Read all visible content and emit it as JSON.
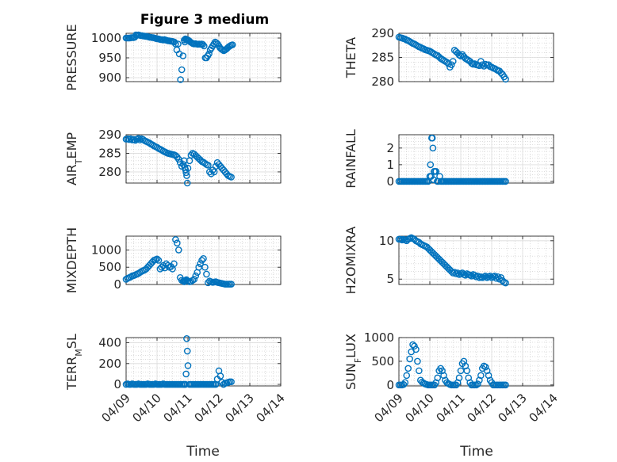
{
  "figure": {
    "title": "Figure 3 medium",
    "xlabel": "Time",
    "marker_color": "#0072bd",
    "xticks": [
      "04/09",
      "04/10",
      "04/11",
      "04/12",
      "04/13",
      "04/14"
    ]
  },
  "chart_data": [
    {
      "type": "scatter",
      "ylabel": "PRESSURE",
      "ylim": [
        890,
        1012
      ],
      "yticks": [
        900,
        950,
        1000
      ],
      "grid": "on",
      "x": [
        0.0,
        0.04,
        0.08,
        0.12,
        0.16,
        0.2,
        0.24,
        0.28,
        0.32,
        0.36,
        0.4,
        0.44,
        0.48,
        0.52,
        0.56,
        0.6,
        0.64,
        0.68,
        0.72,
        0.76,
        0.8,
        0.84,
        0.88,
        0.92,
        0.96,
        1.0,
        1.04,
        1.08,
        1.12,
        1.16,
        1.2,
        1.24,
        1.28,
        1.32,
        1.36,
        1.4,
        1.44,
        1.48,
        1.52,
        1.56,
        1.6,
        1.64,
        1.68,
        1.72,
        1.76,
        1.8,
        1.84,
        1.88,
        1.9,
        1.92,
        1.94,
        1.96,
        1.98,
        2.0,
        2.02,
        2.04,
        2.08,
        2.12,
        2.16,
        2.2,
        2.24,
        2.28,
        2.32,
        2.36,
        2.4,
        2.44,
        2.48,
        2.52,
        2.56,
        2.6,
        2.64,
        2.68,
        2.72,
        2.76,
        2.8,
        2.84,
        2.88,
        2.92,
        2.96,
        3.0,
        3.04,
        3.08,
        3.12,
        3.16,
        3.2,
        3.24,
        3.28,
        3.32,
        3.36,
        3.4,
        3.44
      ],
      "values": [
        1000,
        1000,
        1000,
        1000,
        1001,
        1001,
        1001,
        1002,
        1008,
        1007,
        1008,
        1007,
        1006,
        1006,
        1005,
        1005,
        1004,
        1004,
        1003,
        1002,
        1002,
        1001,
        1001,
        1000,
        999,
        998,
        998,
        997,
        996,
        996,
        995,
        996,
        995,
        994,
        993,
        993,
        992,
        992,
        991,
        990,
        985,
        970,
        985,
        960,
        895,
        920,
        955,
        995,
        990,
        998,
        996,
        995,
        996,
        995,
        994,
        993,
        990,
        988,
        986,
        985,
        986,
        985,
        984,
        985,
        984,
        985,
        984,
        980,
        950,
        950,
        955,
        960,
        970,
        975,
        980,
        985,
        990,
        988,
        985,
        980,
        975,
        972,
        970,
        968,
        970,
        972,
        975,
        978,
        980,
        982,
        983
      ]
    },
    {
      "type": "scatter",
      "ylabel": "THETA",
      "ylim": [
        280,
        290
      ],
      "yticks": [
        280,
        285,
        290
      ],
      "grid": "on",
      "x": [
        0.0,
        0.05,
        0.1,
        0.15,
        0.2,
        0.25,
        0.3,
        0.35,
        0.4,
        0.45,
        0.5,
        0.55,
        0.6,
        0.65,
        0.7,
        0.75,
        0.8,
        0.85,
        0.9,
        0.95,
        1.0,
        1.05,
        1.1,
        1.15,
        1.2,
        1.25,
        1.3,
        1.35,
        1.4,
        1.45,
        1.5,
        1.55,
        1.6,
        1.65,
        1.7,
        1.75,
        1.8,
        1.85,
        1.9,
        1.95,
        2.0,
        2.05,
        2.1,
        2.15,
        2.2,
        2.25,
        2.3,
        2.35,
        2.4,
        2.45,
        2.5,
        2.55,
        2.6,
        2.65,
        2.7,
        2.75,
        2.8,
        2.85,
        2.9,
        2.95,
        3.0,
        3.05,
        3.1,
        3.15,
        3.2,
        3.25,
        3.3,
        3.35,
        3.4,
        3.45
      ],
      "values": [
        289.2,
        289.1,
        289.0,
        288.9,
        288.8,
        288.6,
        288.5,
        288.3,
        288.1,
        287.9,
        287.8,
        287.6,
        287.4,
        287.2,
        287.1,
        286.9,
        286.8,
        286.6,
        286.5,
        286.4,
        286.3,
        286.1,
        285.9,
        285.7,
        285.5,
        285.4,
        285.1,
        284.8,
        284.6,
        284.4,
        284.2,
        284.0,
        283.7,
        283.0,
        283.5,
        284.2,
        286.5,
        286.2,
        285.9,
        285.5,
        285.3,
        285.6,
        285.2,
        284.8,
        284.6,
        284.4,
        284.2,
        283.8,
        283.6,
        283.7,
        283.5,
        283.4,
        283.3,
        284.2,
        283.5,
        283.2,
        283.6,
        283.4,
        283.5,
        283.1,
        283.0,
        282.8,
        282.7,
        282.5,
        282.3,
        282.2,
        281.8,
        281.5,
        281.0,
        280.5
      ]
    },
    {
      "type": "scatter",
      "ylabel": "AIR_TEMP",
      "ylim": [
        277,
        290
      ],
      "yticks": [
        280,
        285,
        290
      ],
      "grid": "on",
      "x": [
        0.0,
        0.05,
        0.1,
        0.15,
        0.2,
        0.25,
        0.3,
        0.35,
        0.4,
        0.45,
        0.5,
        0.55,
        0.6,
        0.65,
        0.7,
        0.75,
        0.8,
        0.85,
        0.9,
        0.95,
        1.0,
        1.05,
        1.1,
        1.15,
        1.2,
        1.25,
        1.3,
        1.35,
        1.4,
        1.45,
        1.5,
        1.55,
        1.6,
        1.65,
        1.7,
        1.75,
        1.8,
        1.85,
        1.88,
        1.9,
        1.92,
        1.94,
        1.96,
        1.98,
        2.0,
        2.05,
        2.1,
        2.15,
        2.2,
        2.25,
        2.3,
        2.35,
        2.4,
        2.45,
        2.5,
        2.55,
        2.6,
        2.65,
        2.7,
        2.75,
        2.8,
        2.85,
        2.9,
        2.95,
        3.0,
        3.05,
        3.1,
        3.15,
        3.2,
        3.25,
        3.3,
        3.35,
        3.4
      ],
      "values": [
        288.8,
        288.9,
        288.7,
        288.9,
        288.6,
        288.7,
        288.5,
        288.8,
        289.0,
        288.6,
        288.9,
        288.7,
        288.4,
        288.2,
        288.0,
        287.8,
        287.5,
        287.3,
        287.0,
        286.8,
        286.6,
        286.3,
        286.1,
        285.9,
        285.6,
        285.4,
        285.2,
        285.0,
        284.9,
        284.8,
        284.7,
        284.6,
        284.4,
        284.0,
        283.4,
        282.5,
        281.5,
        282.0,
        283.0,
        281.2,
        280.6,
        279.8,
        279.0,
        277.0,
        281.0,
        283.0,
        284.5,
        285.0,
        284.8,
        284.4,
        284.0,
        283.6,
        283.2,
        282.8,
        282.6,
        282.3,
        282.0,
        281.8,
        280.0,
        279.5,
        280.5,
        280.0,
        281.5,
        282.5,
        282.0,
        281.5,
        281.0,
        280.5,
        280.0,
        279.5,
        279.0,
        278.8,
        278.6
      ]
    },
    {
      "type": "scatter",
      "ylabel": "RAINFALL",
      "ylim": [
        -0.1,
        2.8
      ],
      "yticks": [
        0,
        1,
        2
      ],
      "grid": "on",
      "x": [
        0.0,
        0.05,
        0.1,
        0.15,
        0.2,
        0.25,
        0.3,
        0.35,
        0.4,
        0.45,
        0.5,
        0.55,
        0.6,
        0.65,
        0.7,
        0.75,
        0.8,
        0.85,
        0.9,
        0.95,
        1.0,
        1.02,
        1.04,
        1.06,
        1.08,
        1.1,
        1.12,
        1.14,
        1.16,
        1.2,
        1.24,
        1.28,
        1.32,
        1.36,
        1.4,
        1.45,
        1.5,
        1.55,
        1.6,
        1.65,
        1.7,
        1.75,
        1.8,
        1.85,
        1.9,
        1.95,
        2.0,
        2.05,
        2.1,
        2.15,
        2.2,
        2.25,
        2.3,
        2.35,
        2.4,
        2.45,
        2.5,
        2.55,
        2.6,
        2.65,
        2.7,
        2.75,
        2.8,
        2.85,
        2.9,
        2.95,
        3.0,
        3.05,
        3.1,
        3.15,
        3.2,
        3.25,
        3.3,
        3.35,
        3.4,
        3.45
      ],
      "values": [
        0,
        0,
        0,
        0,
        0,
        0,
        0,
        0,
        0,
        0,
        0,
        0,
        0,
        0,
        0,
        0,
        0,
        0,
        0,
        0,
        0.3,
        1.0,
        0.3,
        2.6,
        2.6,
        2.0,
        0.1,
        0.6,
        0.6,
        0.6,
        0,
        0,
        0.3,
        0,
        0,
        0,
        0,
        0,
        0,
        0,
        0,
        0,
        0,
        0,
        0,
        0,
        0,
        0,
        0,
        0,
        0,
        0,
        0,
        0,
        0,
        0,
        0,
        0,
        0,
        0,
        0,
        0,
        0,
        0,
        0,
        0,
        0,
        0,
        0,
        0,
        0,
        0,
        0,
        0,
        0,
        0
      ]
    },
    {
      "type": "scatter",
      "ylabel": "MIXDEPTH",
      "ylim": [
        0,
        1400
      ],
      "yticks": [
        0,
        500,
        1000
      ],
      "grid": "on",
      "x": [
        0.0,
        0.05,
        0.1,
        0.15,
        0.2,
        0.25,
        0.3,
        0.35,
        0.4,
        0.45,
        0.5,
        0.55,
        0.6,
        0.65,
        0.7,
        0.75,
        0.8,
        0.85,
        0.9,
        0.95,
        1.0,
        1.05,
        1.1,
        1.15,
        1.2,
        1.25,
        1.3,
        1.35,
        1.4,
        1.45,
        1.5,
        1.55,
        1.6,
        1.65,
        1.7,
        1.75,
        1.8,
        1.85,
        1.88,
        1.9,
        1.92,
        1.95,
        2.0,
        2.05,
        2.1,
        2.15,
        2.2,
        2.25,
        2.3,
        2.35,
        2.4,
        2.45,
        2.5,
        2.55,
        2.6,
        2.65,
        2.7,
        2.75,
        2.8,
        2.85,
        2.9,
        2.95,
        3.0,
        3.05,
        3.1,
        3.15,
        3.2,
        3.25,
        3.3,
        3.35,
        3.4
      ],
      "values": [
        150,
        180,
        200,
        220,
        250,
        260,
        280,
        300,
        320,
        350,
        380,
        400,
        420,
        450,
        500,
        550,
        600,
        650,
        700,
        720,
        740,
        700,
        450,
        500,
        550,
        480,
        600,
        550,
        500,
        520,
        450,
        600,
        1300,
        1200,
        1000,
        200,
        120,
        100,
        80,
        100,
        120,
        140,
        100,
        80,
        90,
        120,
        150,
        250,
        350,
        500,
        600,
        700,
        750,
        500,
        300,
        50,
        100,
        80,
        60,
        70,
        80,
        60,
        50,
        40,
        30,
        20,
        10,
        10,
        10,
        10,
        10
      ]
    },
    {
      "type": "scatter",
      "ylabel": "H2OMIXRA",
      "ylim": [
        4.3,
        10.6
      ],
      "yticks": [
        5,
        10
      ],
      "grid": "on",
      "x": [
        0.0,
        0.05,
        0.1,
        0.15,
        0.2,
        0.25,
        0.3,
        0.35,
        0.4,
        0.45,
        0.5,
        0.55,
        0.6,
        0.65,
        0.7,
        0.75,
        0.8,
        0.85,
        0.9,
        0.95,
        1.0,
        1.05,
        1.1,
        1.15,
        1.2,
        1.25,
        1.3,
        1.35,
        1.4,
        1.45,
        1.5,
        1.55,
        1.6,
        1.65,
        1.7,
        1.75,
        1.8,
        1.85,
        1.9,
        1.95,
        2.0,
        2.05,
        2.1,
        2.15,
        2.2,
        2.25,
        2.3,
        2.35,
        2.4,
        2.45,
        2.5,
        2.55,
        2.6,
        2.65,
        2.7,
        2.75,
        2.8,
        2.85,
        2.9,
        2.95,
        3.0,
        3.05,
        3.1,
        3.15,
        3.2,
        3.25,
        3.3,
        3.35,
        3.4,
        3.45
      ],
      "values": [
        10.2,
        10.2,
        10.1,
        10.2,
        10.1,
        10.0,
        10.2,
        10.3,
        10.4,
        10.3,
        10.2,
        10.0,
        9.9,
        9.8,
        9.6,
        9.5,
        9.4,
        9.3,
        9.2,
        9.0,
        8.8,
        8.6,
        8.4,
        8.2,
        8.0,
        7.8,
        7.6,
        7.4,
        7.2,
        7.0,
        6.8,
        6.6,
        6.4,
        6.2,
        6.0,
        5.8,
        5.9,
        5.7,
        5.8,
        5.6,
        5.7,
        5.8,
        5.6,
        5.5,
        5.7,
        5.6,
        5.5,
        5.4,
        5.6,
        5.5,
        5.3,
        5.4,
        5.2,
        5.3,
        5.2,
        5.3,
        5.4,
        5.2,
        5.3,
        5.4,
        5.2,
        5.3,
        5.4,
        5.1,
        5.3,
        5.0,
        5.2,
        4.8,
        4.6,
        4.5
      ]
    },
    {
      "type": "scatter",
      "ylabel": "TERR_MSL",
      "ylim": [
        -15,
        450
      ],
      "yticks": [
        0,
        200,
        400
      ],
      "grid": "on",
      "x": [
        0.0,
        0.05,
        0.1,
        0.15,
        0.2,
        0.25,
        0.3,
        0.35,
        0.4,
        0.45,
        0.5,
        0.55,
        0.6,
        0.65,
        0.7,
        0.75,
        0.8,
        0.85,
        0.9,
        0.95,
        1.0,
        1.05,
        1.1,
        1.15,
        1.2,
        1.25,
        1.3,
        1.35,
        1.4,
        1.45,
        1.5,
        1.55,
        1.6,
        1.65,
        1.7,
        1.75,
        1.8,
        1.85,
        1.88,
        1.9,
        1.92,
        1.94,
        1.96,
        1.98,
        2.0,
        2.05,
        2.1,
        2.15,
        2.2,
        2.25,
        2.3,
        2.35,
        2.4,
        2.45,
        2.5,
        2.55,
        2.6,
        2.65,
        2.7,
        2.75,
        2.8,
        2.85,
        2.9,
        2.95,
        3.0,
        3.05,
        3.1,
        3.15,
        3.2,
        3.25,
        3.3,
        3.35,
        3.4
      ],
      "values": [
        0,
        5,
        0,
        0,
        5,
        0,
        0,
        0,
        5,
        0,
        0,
        0,
        0,
        0,
        5,
        0,
        0,
        0,
        0,
        5,
        0,
        0,
        0,
        0,
        5,
        0,
        0,
        0,
        0,
        0,
        0,
        0,
        0,
        0,
        0,
        0,
        0,
        0,
        0,
        0,
        0,
        100,
        440,
        320,
        180,
        0,
        0,
        0,
        0,
        0,
        0,
        0,
        0,
        0,
        0,
        0,
        0,
        0,
        0,
        0,
        0,
        0,
        0,
        50,
        130,
        80,
        20,
        0,
        10,
        15,
        20,
        25,
        25
      ]
    },
    {
      "type": "scatter",
      "ylabel": "SUN_FLUX",
      "ylim": [
        -20,
        1000
      ],
      "yticks": [
        0,
        500,
        1000
      ],
      "grid": "on",
      "x": [
        0.0,
        0.05,
        0.1,
        0.15,
        0.2,
        0.25,
        0.3,
        0.35,
        0.4,
        0.45,
        0.5,
        0.55,
        0.6,
        0.65,
        0.7,
        0.75,
        0.8,
        0.85,
        0.9,
        0.95,
        1.0,
        1.05,
        1.1,
        1.15,
        1.2,
        1.25,
        1.3,
        1.35,
        1.4,
        1.45,
        1.5,
        1.55,
        1.6,
        1.65,
        1.7,
        1.75,
        1.8,
        1.85,
        1.9,
        1.95,
        2.0,
        2.05,
        2.1,
        2.15,
        2.2,
        2.25,
        2.3,
        2.35,
        2.4,
        2.45,
        2.5,
        2.55,
        2.6,
        2.65,
        2.7,
        2.75,
        2.8,
        2.85,
        2.9,
        2.95,
        3.0,
        3.05,
        3.1,
        3.15,
        3.2,
        3.25,
        3.3,
        3.35,
        3.4,
        3.45
      ],
      "values": [
        0,
        0,
        0,
        10,
        50,
        200,
        350,
        550,
        700,
        850,
        820,
        750,
        500,
        300,
        100,
        60,
        40,
        20,
        10,
        0,
        0,
        0,
        0,
        0,
        50,
        150,
        300,
        350,
        300,
        200,
        100,
        50,
        30,
        10,
        0,
        0,
        0,
        0,
        50,
        150,
        300,
        450,
        500,
        400,
        300,
        150,
        50,
        0,
        0,
        0,
        0,
        20,
        100,
        200,
        350,
        400,
        380,
        300,
        200,
        100,
        50,
        0,
        0,
        0,
        0,
        0,
        0,
        0,
        0,
        0
      ]
    }
  ]
}
